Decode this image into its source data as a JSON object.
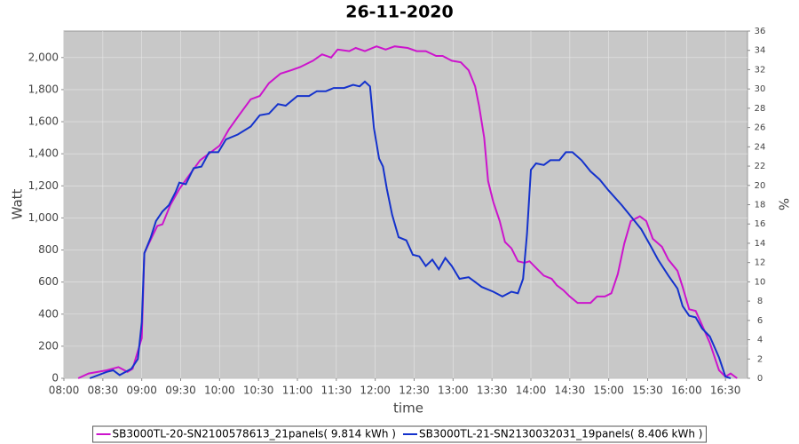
{
  "chart_data": {
    "type": "line",
    "title": "26-11-2020",
    "x_label": "time",
    "y_label": "Watt",
    "y2_label": "%",
    "xlim": [
      "08:00",
      "16:47"
    ],
    "xticks": [
      "08:00",
      "08:30",
      "09:00",
      "09:30",
      "10:00",
      "10:30",
      "11:00",
      "11:30",
      "12:00",
      "12:30",
      "13:00",
      "13:30",
      "14:00",
      "14:30",
      "15:00",
      "15:30",
      "16:00",
      "16:30"
    ],
    "ylim": [
      0,
      2165
    ],
    "yticks": [
      0,
      200,
      400,
      600,
      800,
      {
        "value": 1000,
        "label": "1,000"
      },
      {
        "value": 1200,
        "label": "1,200"
      },
      {
        "value": 1400,
        "label": "1,400"
      },
      {
        "value": 1600,
        "label": "1,600"
      },
      {
        "value": 1800,
        "label": "1,800"
      },
      {
        "value": 2000,
        "label": "2,000"
      }
    ],
    "y2lim": [
      0,
      36
    ],
    "y2ticks": [
      0,
      2,
      4,
      6,
      8,
      10,
      12,
      14,
      16,
      18,
      20,
      22,
      24,
      26,
      28,
      30,
      32,
      34,
      36
    ],
    "grid": true,
    "legend": "bottom",
    "series": [
      {
        "name": "SB3000TL-20-SN2100578613_21panels( 9.814 kWh )",
        "color": "#cc14cc",
        "x": [
          "08:11",
          "08:19",
          "08:33",
          "08:42",
          "08:49",
          "08:53",
          "09:00",
          "09:02",
          "09:09",
          "09:12",
          "09:16",
          "09:22",
          "09:29",
          "09:36",
          "09:45",
          "09:55",
          "10:00",
          "10:07",
          "10:15",
          "10:24",
          "10:31",
          "10:38",
          "10:47",
          "10:55",
          "11:02",
          "11:12",
          "11:19",
          "11:26",
          "11:31",
          "11:40",
          "11:45",
          "11:52",
          "12:01",
          "12:08",
          "12:15",
          "12:25",
          "12:32",
          "12:39",
          "12:47",
          "12:52",
          "12:59",
          "13:06",
          "13:12",
          "13:17",
          "13:20",
          "13:24",
          "13:27",
          "13:31",
          "13:36",
          "13:40",
          "13:45",
          "13:50",
          "13:55",
          "13:59",
          "14:05",
          "14:10",
          "14:16",
          "14:20",
          "14:25",
          "14:30",
          "14:36",
          "14:46",
          "14:51",
          "14:57",
          "15:02",
          "15:07",
          "15:12",
          "15:17",
          "15:24",
          "15:29",
          "15:34",
          "15:41",
          "15:46",
          "15:53",
          "15:57",
          "16:02",
          "16:07",
          "16:12",
          "16:18",
          "16:25",
          "16:30",
          "16:34",
          "16:39"
        ],
        "values": [
          0,
          30,
          50,
          70,
          40,
          60,
          250,
          780,
          900,
          950,
          960,
          1080,
          1180,
          1260,
          1360,
          1420,
          1450,
          1550,
          1640,
          1740,
          1760,
          1840,
          1900,
          1920,
          1940,
          1980,
          2020,
          2000,
          2050,
          2040,
          2060,
          2040,
          2070,
          2050,
          2070,
          2060,
          2040,
          2040,
          2010,
          2010,
          1980,
          1970,
          1920,
          1820,
          1700,
          1500,
          1230,
          1100,
          980,
          850,
          810,
          730,
          720,
          730,
          680,
          640,
          620,
          580,
          550,
          510,
          470,
          470,
          510,
          510,
          530,
          650,
          840,
          980,
          1010,
          980,
          870,
          820,
          740,
          670,
          570,
          430,
          420,
          330,
          220,
          50,
          10,
          30,
          0
        ]
      },
      {
        "name": "SB3000TL-21-SN2130032031_19panels( 8.406 kWh )",
        "color": "#1432cc",
        "x": [
          "08:20",
          "08:33",
          "08:38",
          "08:43",
          "08:52",
          "08:57",
          "09:00",
          "09:02",
          "09:07",
          "09:11",
          "09:16",
          "09:21",
          "09:26",
          "09:29",
          "09:34",
          "09:40",
          "09:46",
          "09:52",
          "09:59",
          "10:05",
          "10:14",
          "10:24",
          "10:31",
          "10:38",
          "10:45",
          "10:51",
          "11:00",
          "11:09",
          "11:15",
          "11:22",
          "11:28",
          "11:36",
          "11:43",
          "11:48",
          "11:52",
          "11:56",
          "11:59",
          "12:03",
          "12:06",
          "12:09",
          "12:13",
          "12:18",
          "12:24",
          "12:29",
          "12:34",
          "12:39",
          "12:44",
          "12:49",
          "12:54",
          "12:59",
          "13:05",
          "13:12",
          "13:17",
          "13:22",
          "13:31",
          "13:38",
          "13:45",
          "13:50",
          "13:54",
          "13:57",
          "14:00",
          "14:04",
          "14:10",
          "14:15",
          "14:22",
          "14:27",
          "14:32",
          "14:39",
          "14:46",
          "14:53",
          "15:00",
          "15:10",
          "15:18",
          "15:25",
          "15:32",
          "15:38",
          "15:46",
          "15:53",
          "15:57",
          "16:02",
          "16:07",
          "16:12",
          "16:18",
          "16:25",
          "16:30",
          "16:34"
        ],
        "values": [
          0,
          40,
          50,
          20,
          60,
          120,
          350,
          780,
          880,
          980,
          1040,
          1080,
          1160,
          1220,
          1210,
          1310,
          1320,
          1410,
          1410,
          1490,
          1520,
          1570,
          1640,
          1650,
          1710,
          1700,
          1760,
          1760,
          1790,
          1790,
          1810,
          1810,
          1830,
          1820,
          1850,
          1820,
          1560,
          1370,
          1320,
          1180,
          1020,
          880,
          860,
          770,
          760,
          700,
          740,
          680,
          750,
          700,
          620,
          630,
          600,
          570,
          540,
          510,
          540,
          530,
          620,
          900,
          1300,
          1340,
          1330,
          1360,
          1360,
          1410,
          1410,
          1360,
          1290,
          1240,
          1170,
          1080,
          1000,
          930,
          830,
          740,
          640,
          560,
          450,
          390,
          380,
          310,
          260,
          130,
          10,
          0
        ]
      }
    ]
  }
}
